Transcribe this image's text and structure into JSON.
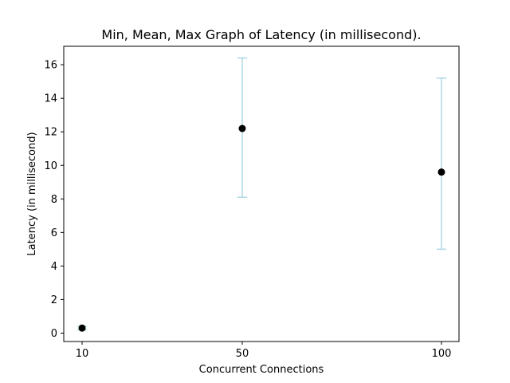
{
  "chart_data": {
    "type": "scatter",
    "title": "Min, Mean, Max Graph of Latency (in millisecond).",
    "xlabel": "Concurrent Connections",
    "ylabel": "Latency (in millisecond)",
    "x_ticks": [
      "10",
      "50",
      "100"
    ],
    "y_ticks": [
      "0",
      "2",
      "4",
      "6",
      "8",
      "10",
      "12",
      "14",
      "16"
    ],
    "ylim": [
      -0.5,
      17.1
    ],
    "grid": false,
    "points": [
      {
        "x": "10",
        "min": 0.2,
        "mean": 0.3,
        "max": 0.4
      },
      {
        "x": "50",
        "min": 8.1,
        "mean": 12.2,
        "max": 16.4
      },
      {
        "x": "100",
        "min": 5.0,
        "mean": 9.6,
        "max": 15.2
      }
    ],
    "colors": {
      "errorbar": "#add8e6",
      "marker": "#000000",
      "axes": "#000000"
    }
  }
}
